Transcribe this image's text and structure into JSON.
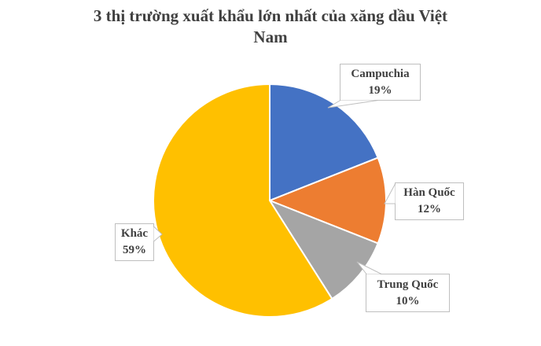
{
  "title": {
    "text": "3 thị trường xuất khẩu lớn nhất của xăng dầu Việt Nam",
    "lines": [
      "3 thị trường xuất khẩu lớn nhất của xăng dầu Việt",
      "Nam"
    ]
  },
  "colors": {
    "title_text": "#404040",
    "label_text": "#404040",
    "callout_border": "#BFBFBF",
    "background": "#FFFFFF",
    "slice_divider": "#FFFFFF"
  },
  "chart_data": {
    "type": "pie",
    "title": "3 thị trường xuất khẩu lớn nhất của xăng dầu Việt Nam",
    "slices": [
      {
        "label": "Campuchia",
        "value": 19,
        "percent_label": "19%",
        "color": "#4472C4",
        "slug": "campuchia"
      },
      {
        "label": "Hàn Quốc",
        "value": 12,
        "percent_label": "12%",
        "color": "#ED7D31",
        "slug": "han-quoc"
      },
      {
        "label": "Trung Quốc",
        "value": 10,
        "percent_label": "10%",
        "color": "#A5A5A5",
        "slug": "trung-quoc"
      },
      {
        "label": "Khác",
        "value": 59,
        "percent_label": "59%",
        "color": "#FFC000",
        "slug": "khac"
      }
    ],
    "start_angle_deg": 0,
    "direction": "clockwise",
    "legend_position": "none",
    "label_style": "callout boxes with pointer wedges"
  }
}
